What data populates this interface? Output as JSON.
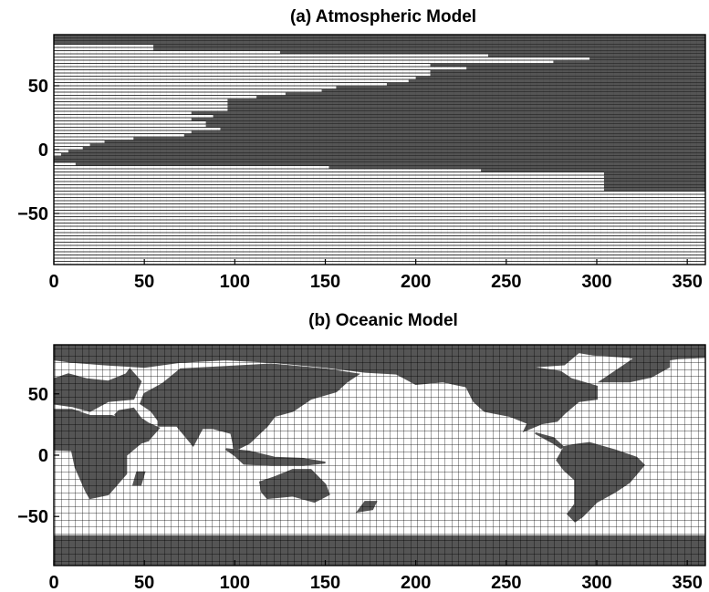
{
  "colors": {
    "land": "#555555",
    "ocean": "#ffffff",
    "gridline": "#000000"
  },
  "chart_data": [
    {
      "type": "heatmap",
      "title": "(a) Atmospheric Model",
      "xlabel": "",
      "ylabel": "",
      "xlim": [
        0,
        360
      ],
      "ylim": [
        -90,
        90
      ],
      "xticks": [
        0,
        50,
        100,
        150,
        200,
        250,
        300,
        350
      ],
      "yticks": [
        -50,
        0,
        50
      ],
      "rows": {
        "lat_start": 90,
        "lat_step": -2.5,
        "land_start_lon": [
          0,
          0,
          0,
          55,
          55,
          125,
          240,
          296,
          276,
          208,
          228,
          208,
          208,
          200,
          196,
          184,
          156,
          148,
          128,
          112,
          96,
          96,
          96,
          96,
          76,
          88,
          76,
          84,
          84,
          92,
          76,
          72,
          44,
          28,
          20,
          16,
          8,
          4,
          0,
          0,
          12,
          152,
          236,
          304,
          304,
          304,
          304,
          304,
          304,
          0,
          0,
          0,
          0,
          0,
          0,
          0,
          0,
          0,
          0,
          0,
          0,
          0,
          0,
          0,
          0,
          0,
          0,
          0,
          0,
          0,
          0,
          0
        ],
        "land_end_lon": [
          360,
          360,
          360,
          360,
          360,
          360,
          360,
          360,
          360,
          360,
          360,
          360,
          360,
          360,
          360,
          360,
          360,
          360,
          360,
          360,
          360,
          360,
          360,
          360,
          360,
          360,
          360,
          360,
          360,
          360,
          360,
          360,
          360,
          360,
          360,
          360,
          360,
          360,
          360,
          360,
          360,
          360,
          360,
          360,
          360,
          360,
          360,
          360,
          360,
          0,
          0,
          0,
          0,
          0,
          0,
          0,
          0,
          0,
          0,
          0,
          0,
          0,
          0,
          0,
          0,
          0,
          0,
          0,
          0,
          0,
          0,
          0
        ]
      }
    },
    {
      "type": "heatmap",
      "title": "(b) Oceanic Model",
      "xlabel": "",
      "ylabel": "",
      "xlim": [
        0,
        360
      ],
      "ylim": [
        -90,
        90
      ],
      "xticks": [
        0,
        50,
        100,
        150,
        200,
        250,
        300,
        350
      ],
      "yticks": [
        -50,
        0,
        50
      ],
      "lon_step": 3.75,
      "lat_step": 3.75,
      "values": "1 = land (grey), 0 = ocean (white)",
      "land_polygons": [
        [
          [
            0,
            90
          ],
          [
            360,
            90
          ],
          [
            360,
            80
          ],
          [
            345,
            79
          ],
          [
            330,
            76
          ],
          [
            318,
            80
          ],
          [
            298,
            82
          ],
          [
            290,
            84
          ],
          [
            282,
            74
          ],
          [
            262,
            72
          ],
          [
            240,
            70
          ],
          [
            215,
            70
          ],
          [
            195,
            66
          ],
          [
            172,
            68
          ],
          [
            150,
            72
          ],
          [
            120,
            76
          ],
          [
            95,
            78
          ],
          [
            70,
            76
          ],
          [
            50,
            72
          ],
          [
            28,
            74
          ],
          [
            10,
            76
          ],
          [
            0,
            78
          ]
        ],
        [
          [
            0,
            62
          ],
          [
            8,
            66
          ],
          [
            18,
            62
          ],
          [
            30,
            60
          ],
          [
            40,
            66
          ],
          [
            42,
            70
          ],
          [
            48,
            60
          ],
          [
            44,
            46
          ],
          [
            30,
            44
          ],
          [
            20,
            36
          ],
          [
            10,
            40
          ],
          [
            0,
            42
          ]
        ],
        [
          [
            -10,
            42
          ],
          [
            -10,
            20
          ],
          [
            -5,
            5
          ],
          [
            10,
            4
          ],
          [
            12,
            -10
          ],
          [
            18,
            -30
          ],
          [
            20,
            -35
          ],
          [
            30,
            -32
          ],
          [
            40,
            -15
          ],
          [
            40,
            0
          ],
          [
            48,
            10
          ],
          [
            52,
            12
          ],
          [
            42,
            28
          ],
          [
            32,
            32
          ],
          [
            20,
            32
          ],
          [
            10,
            37
          ],
          [
            0,
            37
          ]
        ],
        [
          [
            34,
            33
          ],
          [
            42,
            14
          ],
          [
            52,
            12
          ],
          [
            58,
            22
          ],
          [
            52,
            26
          ],
          [
            48,
            30
          ],
          [
            44,
            38
          ],
          [
            36,
            36
          ]
        ],
        [
          [
            58,
            24
          ],
          [
            68,
            24
          ],
          [
            77,
            8
          ],
          [
            82,
            22
          ],
          [
            88,
            22
          ],
          [
            98,
            18
          ],
          [
            100,
            4
          ],
          [
            108,
            10
          ],
          [
            118,
            24
          ],
          [
            122,
            32
          ],
          [
            132,
            36
          ],
          [
            142,
            46
          ],
          [
            156,
            52
          ],
          [
            162,
            60
          ],
          [
            168,
            66
          ],
          [
            150,
            70
          ],
          [
            120,
            74
          ],
          [
            95,
            72
          ],
          [
            70,
            70
          ],
          [
            60,
            58
          ],
          [
            50,
            50
          ],
          [
            48,
            42
          ],
          [
            54,
            36
          ],
          [
            58,
            28
          ]
        ],
        [
          [
            95,
            5
          ],
          [
            108,
            3
          ],
          [
            122,
            -2
          ],
          [
            138,
            -3
          ],
          [
            150,
            -6
          ],
          [
            138,
            -8
          ],
          [
            120,
            -8
          ],
          [
            105,
            -7
          ],
          [
            100,
            0
          ]
        ],
        [
          [
            114,
            -22
          ],
          [
            122,
            -18
          ],
          [
            132,
            -12
          ],
          [
            142,
            -12
          ],
          [
            150,
            -24
          ],
          [
            152,
            -32
          ],
          [
            144,
            -38
          ],
          [
            132,
            -33
          ],
          [
            118,
            -35
          ],
          [
            115,
            -30
          ]
        ],
        [
          [
            172,
            -38
          ],
          [
            178,
            -38
          ],
          [
            176,
            -44
          ],
          [
            168,
            -46
          ]
        ],
        [
          [
            46,
            -14
          ],
          [
            50,
            -14
          ],
          [
            48,
            -24
          ],
          [
            44,
            -24
          ]
        ],
        [
          [
            190,
            66
          ],
          [
            200,
            72
          ],
          [
            215,
            72
          ],
          [
            240,
            70
          ],
          [
            262,
            72
          ],
          [
            280,
            68
          ],
          [
            286,
            62
          ],
          [
            300,
            56
          ],
          [
            300,
            46
          ],
          [
            290,
            44
          ],
          [
            282,
            34
          ],
          [
            278,
            28
          ],
          [
            270,
            26
          ],
          [
            260,
            20
          ],
          [
            262,
            26
          ],
          [
            252,
            32
          ],
          [
            238,
            36
          ],
          [
            232,
            44
          ],
          [
            228,
            56
          ],
          [
            215,
            60
          ],
          [
            200,
            58
          ]
        ],
        [
          [
            266,
            18
          ],
          [
            276,
            10
          ],
          [
            280,
            6
          ],
          [
            286,
            8
          ],
          [
            296,
            10
          ],
          [
            310,
            4
          ],
          [
            322,
            -2
          ],
          [
            326,
            -8
          ],
          [
            318,
            -22
          ],
          [
            310,
            -30
          ],
          [
            300,
            -38
          ],
          [
            292,
            -50
          ],
          [
            288,
            -54
          ],
          [
            284,
            -48
          ],
          [
            288,
            -40
          ],
          [
            288,
            -20
          ],
          [
            282,
            -12
          ],
          [
            278,
            -4
          ],
          [
            282,
            6
          ],
          [
            276,
            14
          ]
        ],
        [
          [
            302,
            60
          ],
          [
            312,
            70
          ],
          [
            326,
            84
          ],
          [
            340,
            83
          ],
          [
            340,
            72
          ],
          [
            330,
            64
          ],
          [
            318,
            60
          ]
        ],
        [
          [
            0,
            -66
          ],
          [
            360,
            -66
          ],
          [
            360,
            -90
          ],
          [
            0,
            -90
          ]
        ]
      ]
    }
  ]
}
